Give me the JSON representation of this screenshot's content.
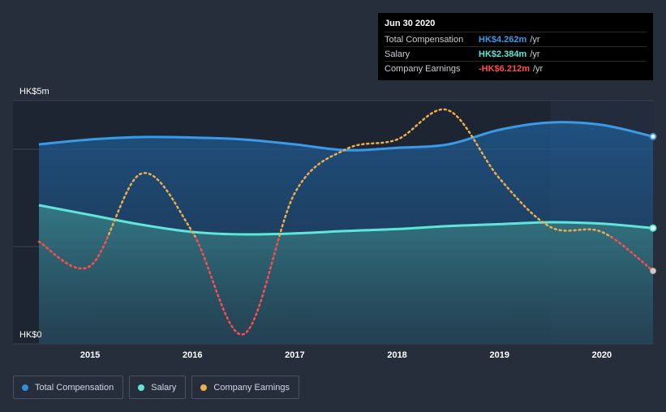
{
  "tooltip": {
    "date": "Jun 30 2020",
    "rows": [
      {
        "label": "Total Compensation",
        "value": "HK$4.262m",
        "unit": "/yr",
        "color": "#3b9ae8"
      },
      {
        "label": "Salary",
        "value": "HK$2.384m",
        "unit": "/yr",
        "color": "#5ee6d8"
      },
      {
        "label": "Company Earnings",
        "value": "-HK$6.212m",
        "unit": "/yr",
        "color": "#ff4d4d"
      }
    ]
  },
  "legend": [
    {
      "label": "Total Compensation",
      "color": "#2c8fe0"
    },
    {
      "label": "Salary",
      "color": "#5ee6d8"
    },
    {
      "label": "Company Earnings",
      "color": "#f0ad4e"
    }
  ],
  "chart_data": {
    "type": "line",
    "y_tick_labels": [
      "HK$5m",
      "HK$0"
    ],
    "ylim": [
      0,
      5
    ],
    "x_tick_labels": [
      "2015",
      "2016",
      "2017",
      "2018",
      "2019",
      "2020"
    ],
    "x_tick_positions": [
      2015,
      2016,
      2017,
      2018,
      2019,
      2020
    ],
    "xlim": [
      2014.5,
      2020.5
    ],
    "forecast_start": 2019.5,
    "series": [
      {
        "name": "Total Compensation",
        "color": "#3b9ae8",
        "unit": "HK$m",
        "x": [
          2014.5,
          2015,
          2015.5,
          2016,
          2016.5,
          2017,
          2017.5,
          2018,
          2018.5,
          2019,
          2019.5,
          2020,
          2020.5
        ],
        "values": [
          4.1,
          4.2,
          4.25,
          4.24,
          4.2,
          4.1,
          3.98,
          4.03,
          4.1,
          4.4,
          4.55,
          4.5,
          4.26
        ]
      },
      {
        "name": "Salary",
        "color": "#5ee6d8",
        "unit": "HK$m",
        "x": [
          2014.5,
          2015,
          2015.5,
          2016,
          2016.5,
          2017,
          2017.5,
          2018,
          2018.5,
          2019,
          2019.5,
          2020,
          2020.5
        ],
        "values": [
          2.85,
          2.65,
          2.45,
          2.3,
          2.25,
          2.27,
          2.32,
          2.36,
          2.42,
          2.46,
          2.5,
          2.47,
          2.38
        ]
      },
      {
        "name": "Company Earnings",
        "color": "#f0ad4e",
        "negative_color": "#ff4d4d",
        "unit": "scaled",
        "x": [
          2014.5,
          2015,
          2015.5,
          2016,
          2016.5,
          2017,
          2017.5,
          2018,
          2018.5,
          2019,
          2019.5,
          2020,
          2020.5
        ],
        "values": [
          2.1,
          1.6,
          3.5,
          2.3,
          0.2,
          3.1,
          4.0,
          4.2,
          4.8,
          3.4,
          2.4,
          2.3,
          1.5
        ]
      }
    ]
  }
}
